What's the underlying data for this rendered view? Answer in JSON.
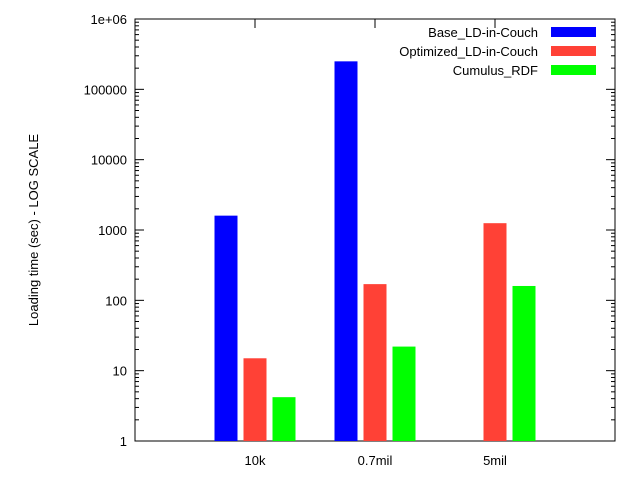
{
  "chart_data": {
    "type": "bar",
    "title": "",
    "xlabel": "",
    "ylabel": "Loading time (sec) - LOG SCALE",
    "yscale": "log",
    "ylim": [
      1,
      1000000
    ],
    "yticks": [
      1,
      10,
      100,
      1000,
      10000,
      100000,
      1000000
    ],
    "ytick_labels": [
      "1",
      "10",
      "100",
      "1000",
      "10000",
      "100000",
      "1e+06"
    ],
    "categories": [
      "10k",
      "0.7mil",
      "5mil"
    ],
    "series": [
      {
        "name": "Base_LD-in-Couch",
        "color": "#0000ff",
        "values": [
          1600,
          250000,
          null
        ]
      },
      {
        "name": "Optimized_LD-in-Couch",
        "color": "#ff4136",
        "values": [
          15,
          170,
          1250
        ]
      },
      {
        "name": "Cumulus_RDF",
        "color": "#00ff00",
        "values": [
          4.2,
          22,
          160
        ]
      }
    ],
    "legend": "top-right",
    "grid": false
  }
}
